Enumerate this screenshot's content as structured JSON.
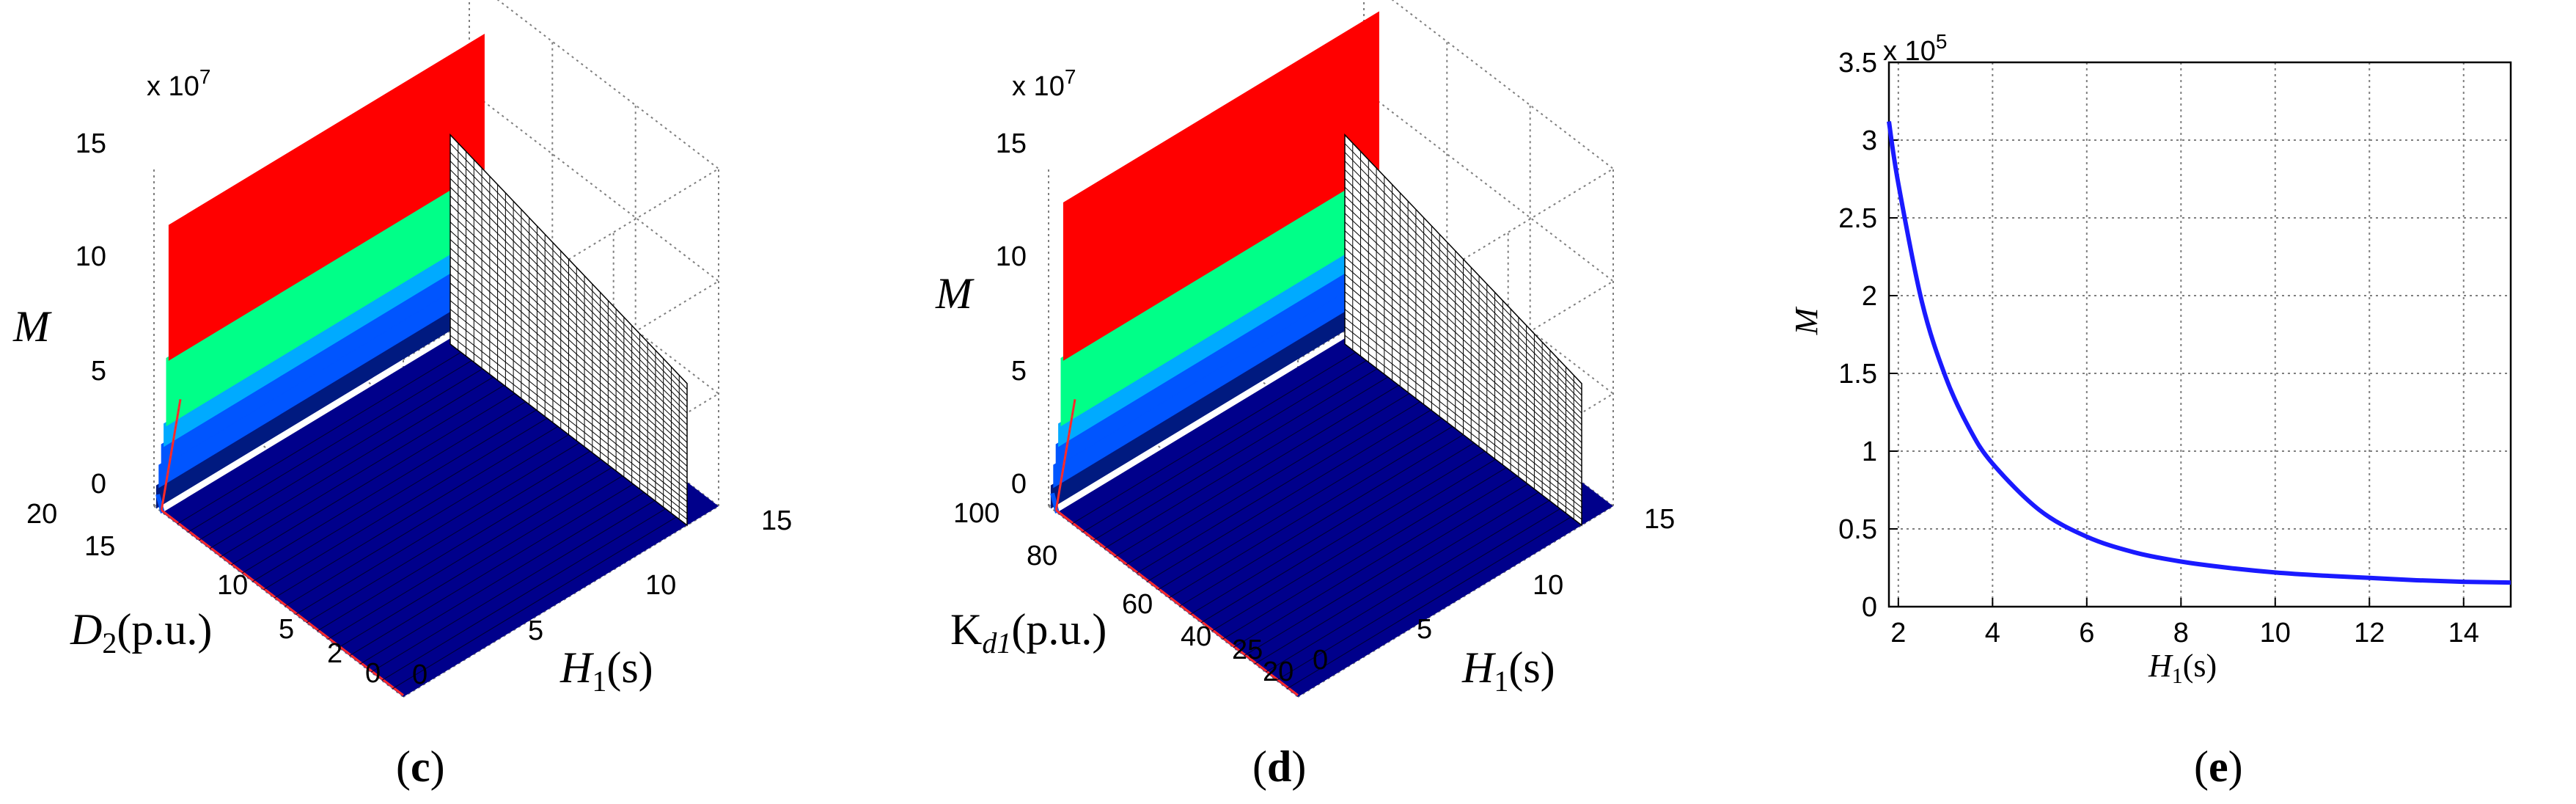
{
  "panels": {
    "c": {
      "caption_open": "(",
      "caption_letter": "c",
      "caption_close": ")",
      "exponent_label": "x 10",
      "exponent": "7",
      "zlabel": "M",
      "ylabel_var": "D",
      "ylabel_sub": "2",
      "ylabel_unit": "(p.u.)",
      "xlabel_var": "H",
      "xlabel_sub": "1",
      "xlabel_unit": "(s)",
      "zticks": [
        "0",
        "5",
        "10",
        "15"
      ],
      "yticks": [
        "20",
        "15",
        "10",
        "5",
        "2",
        "0"
      ],
      "xticks": [
        "0",
        "5",
        "10",
        "15"
      ]
    },
    "d": {
      "caption_open": "(",
      "caption_letter": "d",
      "caption_close": ")",
      "exponent_label": "x 10",
      "exponent": "7",
      "zlabel": "M",
      "ylabel_pre": "K",
      "ylabel_sub": "d1",
      "ylabel_unit": "(p.u.)",
      "xlabel_var": "H",
      "xlabel_sub": "1",
      "xlabel_unit": "(s)",
      "zticks": [
        "0",
        "5",
        "10",
        "15"
      ],
      "yticks": [
        "100",
        "80",
        "60",
        "40",
        "25",
        "20"
      ],
      "xticks": [
        "0",
        "5",
        "10",
        "15"
      ]
    },
    "e": {
      "caption_open": "(",
      "caption_letter": "e",
      "caption_close": ")",
      "exponent_label": "x 10",
      "exponent": "5",
      "ylabel": "M",
      "xlabel_var": "H",
      "xlabel_sub": "1",
      "xlabel_unit": "(s)"
    }
  },
  "colors": {
    "band_red": "#ff0000",
    "band_green": "#00ff88",
    "band_cyan": "#00aaff",
    "band_blue": "#0055ff",
    "band_darkblue": "#001a80",
    "floor": "#00008b",
    "curve": "#1a1aff",
    "redline": "#ff2a2a"
  },
  "chart_data": [
    {
      "panel": "c",
      "type": "surface3d",
      "title": "",
      "xlabel": "H1(s)",
      "ylabel": "D2(p.u.)",
      "zlabel": "M",
      "xlim": [
        0,
        15
      ],
      "ylim": [
        0,
        20
      ],
      "zlim": [
        0,
        15
      ],
      "z_scale": "x 10^7",
      "x_ticks": [
        0,
        5,
        10,
        15
      ],
      "y_ticks": [
        0,
        2,
        5,
        10,
        15,
        20
      ],
      "z_ticks": [
        0,
        5,
        10,
        15
      ],
      "color_bands_z": [
        0,
        1,
        2,
        3,
        4,
        7,
        13
      ],
      "peak_z": 13,
      "wall_x": 0.5
    },
    {
      "panel": "d",
      "type": "surface3d",
      "title": "",
      "xlabel": "H1(s)",
      "ylabel": "Kd1(p.u.)",
      "zlabel": "M",
      "xlim": [
        0,
        15
      ],
      "ylim": [
        20,
        100
      ],
      "zlim": [
        0,
        15
      ],
      "z_scale": "x 10^7",
      "x_ticks": [
        0,
        5,
        10,
        15
      ],
      "y_ticks": [
        20,
        25,
        40,
        60,
        80,
        100
      ],
      "z_ticks": [
        0,
        5,
        10,
        15
      ],
      "color_bands_z": [
        0,
        1,
        2,
        3,
        4,
        7,
        14
      ],
      "peak_z": 14,
      "wall_x": 0.5
    },
    {
      "panel": "e",
      "type": "line",
      "title": "",
      "xlabel": "H1(s)",
      "ylabel": "M",
      "y_scale": "x 10^5",
      "xlim": [
        1.8,
        15
      ],
      "ylim": [
        0,
        3.5
      ],
      "x_ticks": [
        2,
        4,
        6,
        8,
        10,
        12,
        14
      ],
      "y_ticks": [
        0,
        0.5,
        1,
        1.5,
        2,
        2.5,
        3,
        3.5
      ],
      "grid": true,
      "series": [
        {
          "name": "M",
          "x": [
            1.8,
            2.0,
            2.5,
            3.0,
            3.5,
            4.0,
            5.0,
            6.0,
            7.0,
            8.0,
            9.0,
            10.0,
            11.0,
            12.0,
            13.0,
            14.0,
            15.0
          ],
          "values": [
            3.12,
            2.72,
            1.96,
            1.48,
            1.15,
            0.92,
            0.62,
            0.45,
            0.35,
            0.29,
            0.25,
            0.22,
            0.2,
            0.185,
            0.17,
            0.16,
            0.155
          ]
        }
      ]
    }
  ]
}
